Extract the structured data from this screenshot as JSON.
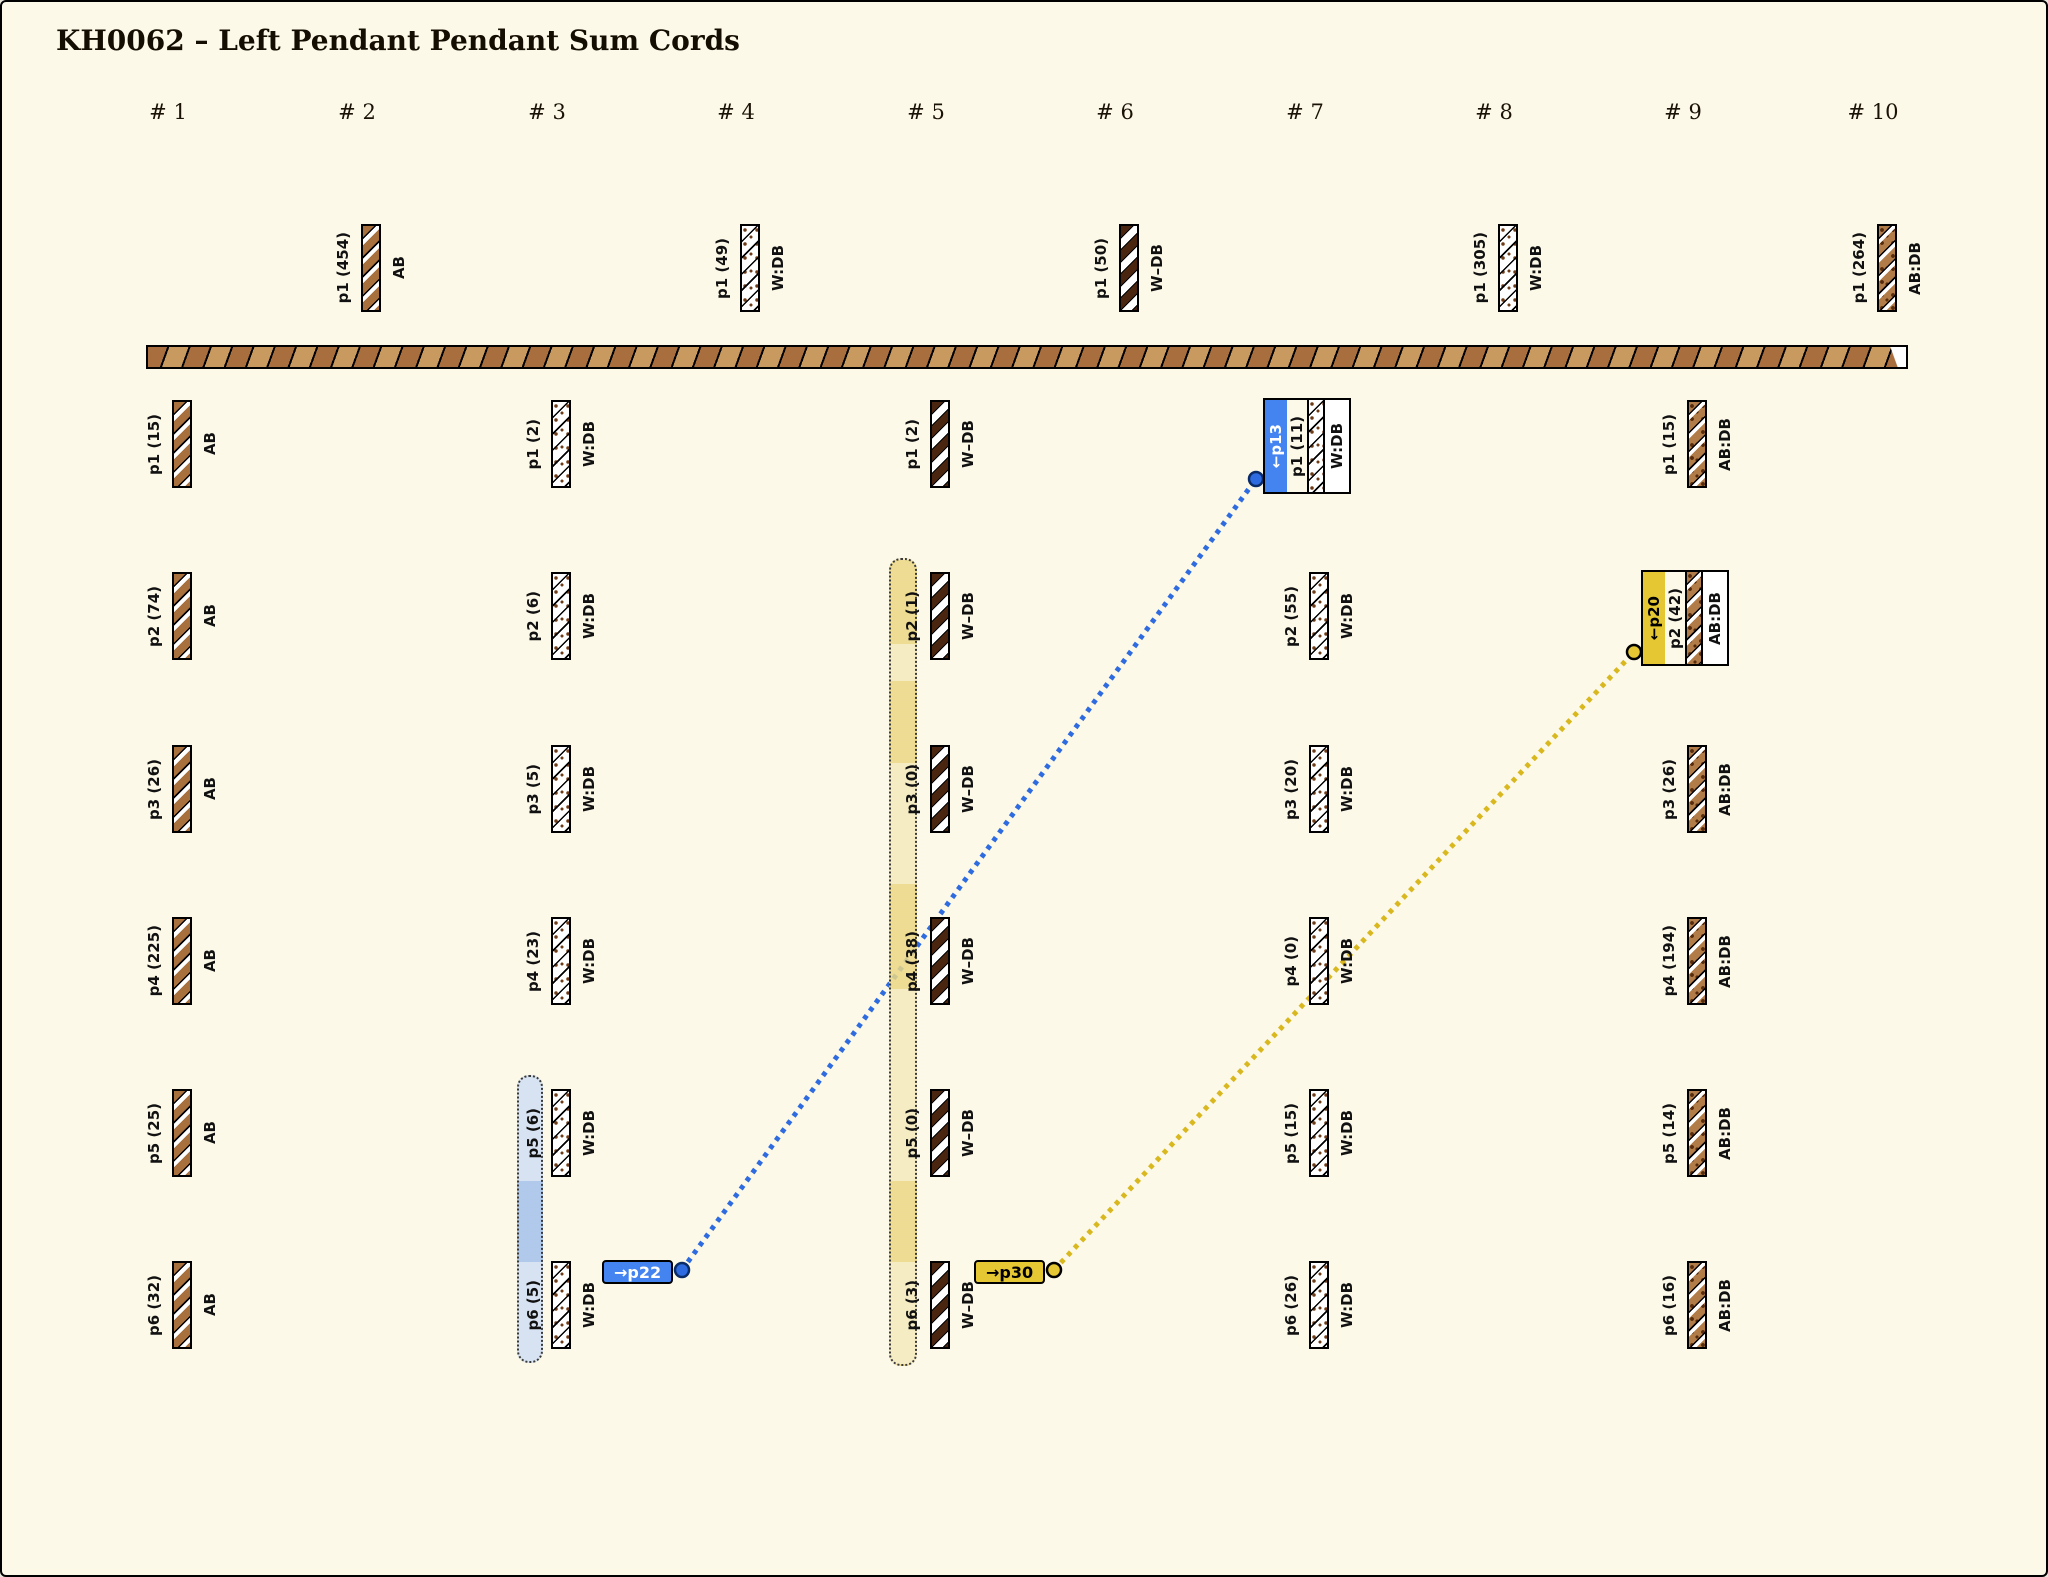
{
  "title": "KH0062 – Left Pendant Pendant Sum Cords",
  "colors": {
    "background": "#FCF9E8",
    "blue_accent": "#4384F0",
    "blue_line": "#2E6BE0",
    "blue_line_edge": "#0B2B66",
    "yellow_accent": "#E4C733",
    "yellow_line": "#D9B71E",
    "cord_brown_ab": "#A8703C",
    "cord_dark_brown": "#4A2610",
    "cord_light_brown_abdb": "#B27C48",
    "speckle_brown": "#6E3B17",
    "bar_tan": "#C89A5F",
    "bar_brown": "#A86E3E",
    "band_yellow_light": "rgba(244,233,186,0.8)",
    "band_yellow_dark": "rgba(235,215,132,0.85)",
    "band_blue_light": "rgba(205,221,243,0.8)",
    "band_blue_dark": "rgba(163,193,234,0.85)"
  },
  "columns": [
    {
      "header": "# 1",
      "pendants": [
        {
          "label": "p1 (15)",
          "material": "AB"
        },
        {
          "label": "p2 (74)",
          "material": "AB"
        },
        {
          "label": "p3 (26)",
          "material": "AB"
        },
        {
          "label": "p4 (225)",
          "material": "AB"
        },
        {
          "label": "p5 (25)",
          "material": "AB"
        },
        {
          "label": "p6 (32)",
          "material": "AB"
        }
      ]
    },
    {
      "header": "# 2",
      "top": {
        "label": "p1 (454)",
        "material": "AB"
      }
    },
    {
      "header": "# 3",
      "pendants": [
        {
          "label": "p1 (2)",
          "material": "W:DB"
        },
        {
          "label": "p2 (6)",
          "material": "W:DB"
        },
        {
          "label": "p3 (5)",
          "material": "W:DB"
        },
        {
          "label": "p4 (23)",
          "material": "W:DB"
        },
        {
          "label": "p5 (6)",
          "material": "W:DB"
        },
        {
          "label": "p6 (5)",
          "material": "W:DB"
        }
      ]
    },
    {
      "header": "# 4",
      "top": {
        "label": "p1 (49)",
        "material": "W:DB"
      }
    },
    {
      "header": "# 5",
      "pendants": [
        {
          "label": "p1 (2)",
          "material": "W–DB"
        },
        {
          "label": "p2 (1)",
          "material": "W–DB"
        },
        {
          "label": "p3 (0)",
          "material": "W–DB"
        },
        {
          "label": "p4 (38)",
          "material": "W–DB"
        },
        {
          "label": "p5 (0)",
          "material": "W–DB"
        },
        {
          "label": "p6 (3)",
          "material": "W–DB"
        }
      ]
    },
    {
      "header": "# 6",
      "top": {
        "label": "p1 (50)",
        "material": "W–DB"
      }
    },
    {
      "header": "# 7",
      "pendants": [
        {
          "label": "p1 (11)",
          "material": "W:DB",
          "tag": {
            "id": "p13",
            "text": "←p13",
            "color": "blue"
          }
        },
        {
          "label": "p2 (55)",
          "material": "W:DB"
        },
        {
          "label": "p3 (20)",
          "material": "W:DB"
        },
        {
          "label": "p4 (0)",
          "material": "W:DB"
        },
        {
          "label": "p5 (15)",
          "material": "W:DB"
        },
        {
          "label": "p6 (26)",
          "material": "W:DB"
        }
      ]
    },
    {
      "header": "# 8",
      "top": {
        "label": "p1 (305)",
        "material": "W:DB"
      }
    },
    {
      "header": "# 9",
      "pendants": [
        {
          "label": "p1 (15)",
          "material": "AB:DB"
        },
        {
          "label": "p2 (42)",
          "material": "AB:DB",
          "tag": {
            "id": "p20",
            "text": "←p20",
            "color": "yellow"
          }
        },
        {
          "label": "p3 (26)",
          "material": "AB:DB"
        },
        {
          "label": "p4 (194)",
          "material": "AB:DB"
        },
        {
          "label": "p5 (14)",
          "material": "AB:DB"
        },
        {
          "label": "p6 (16)",
          "material": "AB:DB"
        }
      ]
    },
    {
      "header": "# 10",
      "top": {
        "label": "p1 (264)",
        "material": "AB:DB"
      }
    }
  ],
  "markers": [
    {
      "id": "p22",
      "text": "→p22",
      "color": "blue"
    },
    {
      "id": "p30",
      "text": "→p30",
      "color": "yellow"
    }
  ],
  "links": [
    {
      "from": "p22",
      "to": "p13",
      "color": "blue"
    },
    {
      "from": "p30",
      "to": "p20",
      "color": "yellow"
    }
  ]
}
